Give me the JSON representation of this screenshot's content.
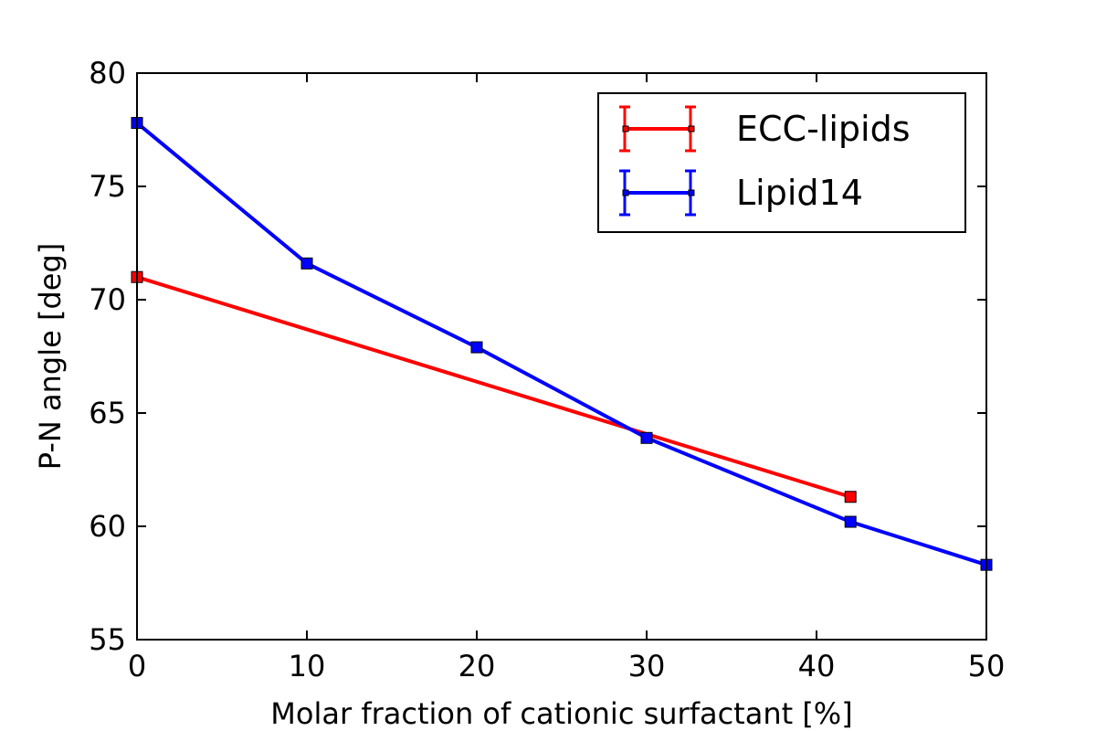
{
  "chart_data": {
    "type": "line",
    "xlabel": "Molar fraction of cationic surfactant [%]",
    "ylabel": "P-N angle [deg]",
    "xlim": [
      0,
      50
    ],
    "ylim": [
      55,
      80
    ],
    "xticks": [
      0,
      10,
      20,
      30,
      40,
      50
    ],
    "yticks": [
      55,
      60,
      65,
      70,
      75,
      80
    ],
    "xtick_labels": [
      "0",
      "10",
      "20",
      "30",
      "40",
      "50"
    ],
    "ytick_labels": [
      "55",
      "60",
      "65",
      "70",
      "75",
      "80"
    ],
    "grid": false,
    "legend_position": "top-right",
    "series": [
      {
        "name": "ECC-lipids",
        "color": "#ff0000",
        "marker": "square",
        "points": [
          {
            "x": 0,
            "y": 71.0
          },
          {
            "x": 42,
            "y": 61.3
          }
        ]
      },
      {
        "name": "Lipid14",
        "color": "#0000ff",
        "marker": "square",
        "points": [
          {
            "x": 0,
            "y": 77.8
          },
          {
            "x": 10,
            "y": 71.6
          },
          {
            "x": 20,
            "y": 67.9
          },
          {
            "x": 30,
            "y": 63.9
          },
          {
            "x": 42,
            "y": 60.2
          },
          {
            "x": 50,
            "y": 58.3
          }
        ]
      }
    ]
  }
}
